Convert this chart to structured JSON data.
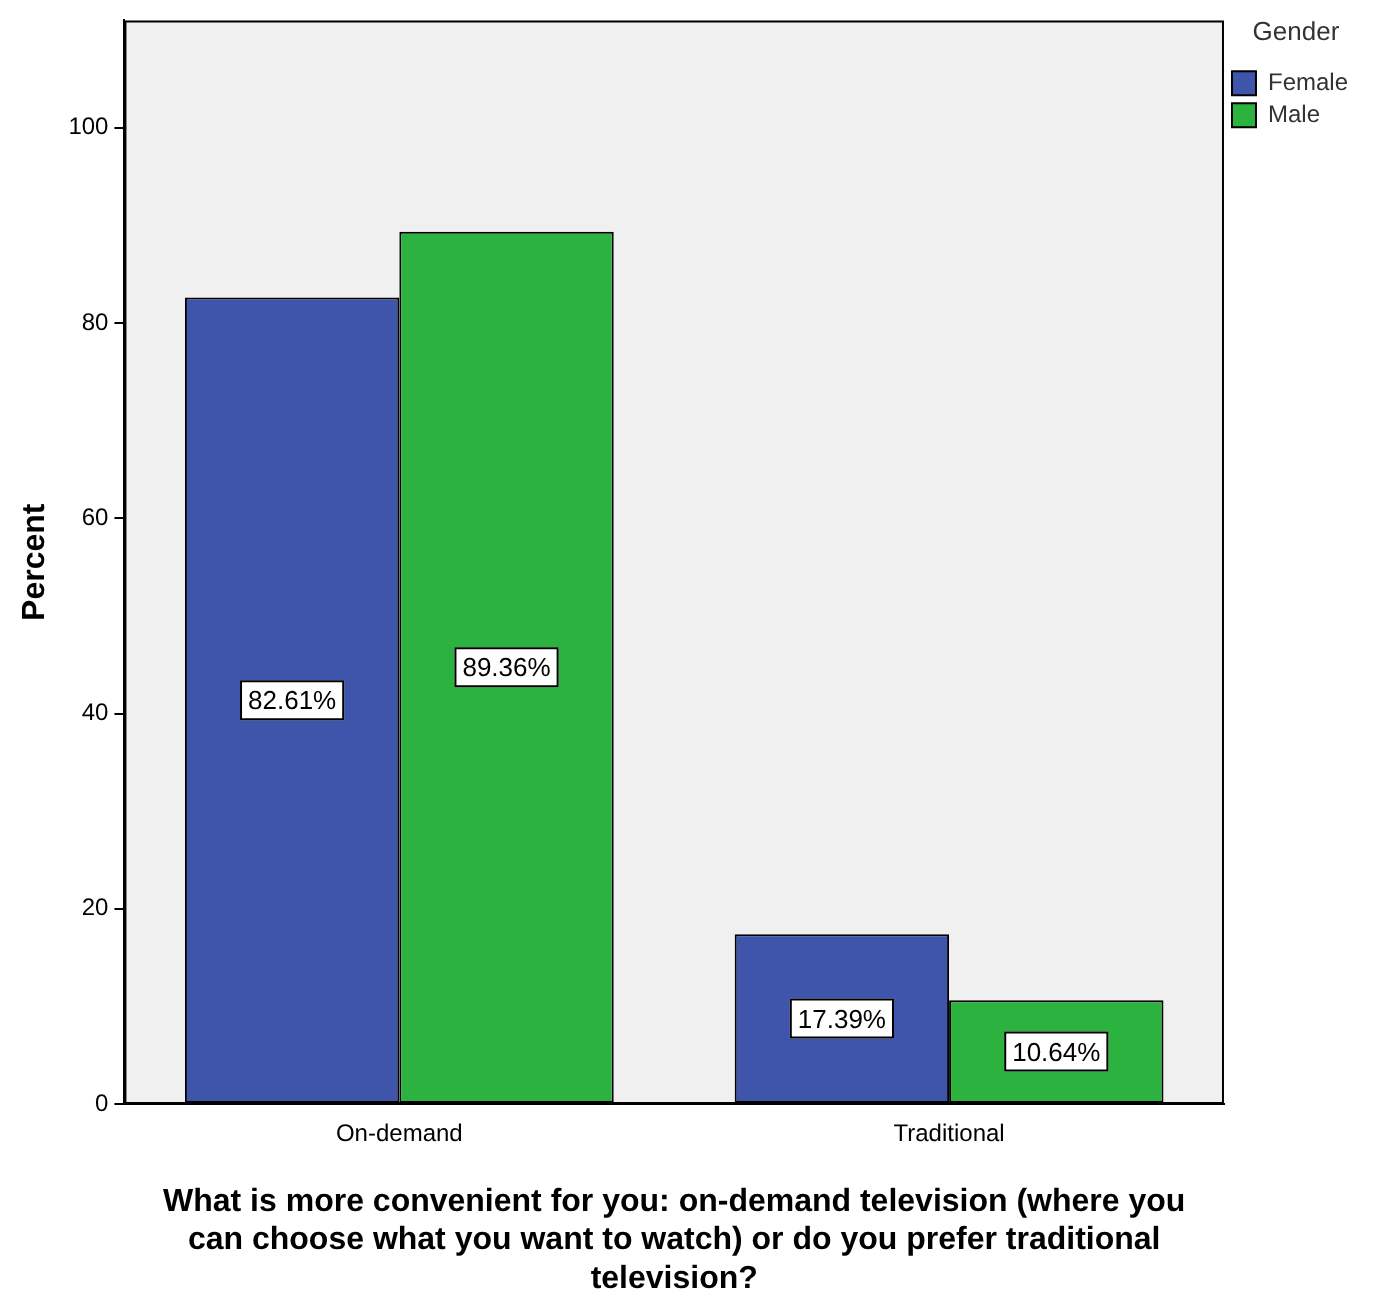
{
  "chart_data": {
    "type": "bar",
    "xlabel": "What is more convenient for you: on-demand television (where you can choose what you want to watch) or do you prefer traditional television?",
    "ylabel": "Percent",
    "legend_title": "Gender",
    "categories": [
      "On-demand",
      "Traditional"
    ],
    "series": [
      {
        "name": "Female",
        "color": "#3e55ab",
        "values": [
          82.61,
          17.39
        ],
        "value_labels": [
          "82.61%",
          "17.39%"
        ]
      },
      {
        "name": "Male",
        "color": "#2cb23e",
        "values": [
          89.36,
          10.64
        ],
        "value_labels": [
          "89.36%",
          "10.64%"
        ]
      }
    ],
    "ylim": [
      0,
      111
    ],
    "yticks": [
      0,
      20,
      40,
      60,
      80,
      100
    ],
    "grid": false,
    "legend": "top right"
  }
}
